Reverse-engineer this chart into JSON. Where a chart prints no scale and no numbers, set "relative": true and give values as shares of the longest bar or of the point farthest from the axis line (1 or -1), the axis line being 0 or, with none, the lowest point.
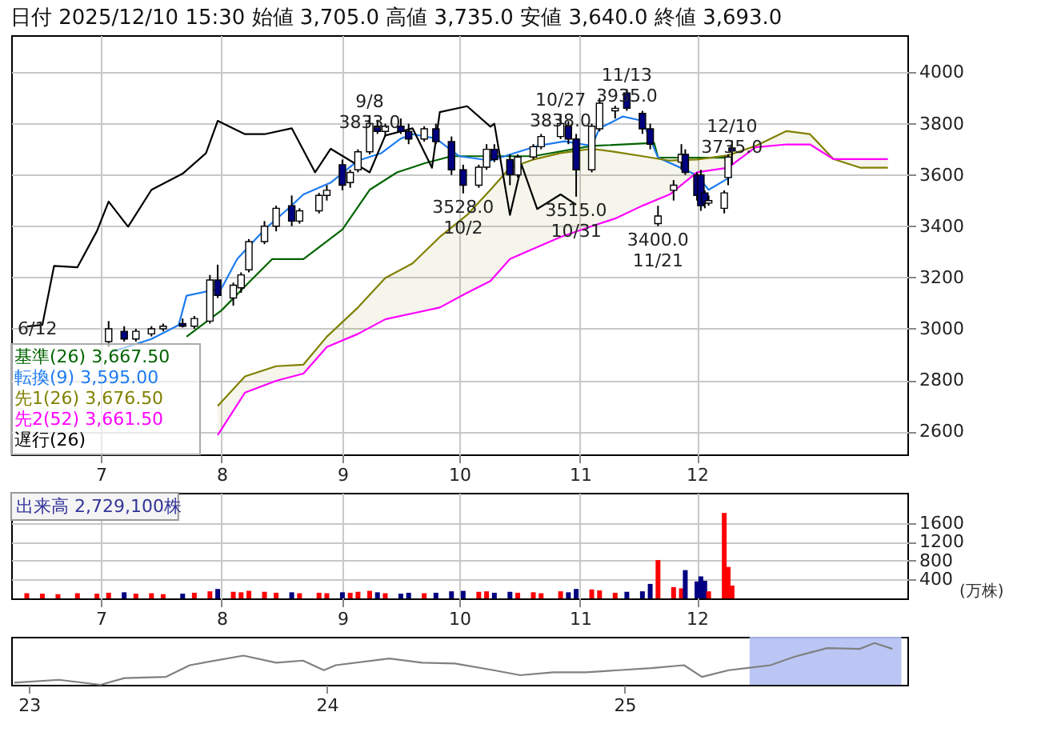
{
  "chart_data": [
    {
      "type": "candlestick",
      "title": "日付 2025/12/10 15:30 始値 3,705.0 高値 3,735.0 安値 3,640.0 終値 3,693.0",
      "x": [
        "2025-07-03",
        "2025-07-07",
        "2025-07-10",
        "2025-07-14",
        "2025-07-17",
        "2025-07-22",
        "2025-07-25",
        "2025-07-29",
        "2025-07-31",
        "2025-08-04",
        "2025-08-06",
        "2025-08-08",
        "2025-08-12",
        "2025-08-15",
        "2025-08-19",
        "2025-08-21",
        "2025-08-26",
        "2025-08-28",
        "2025-09-01",
        "2025-09-03",
        "2025-09-05",
        "2025-09-08",
        "2025-09-10",
        "2025-09-12",
        "2025-09-16",
        "2025-09-18",
        "2025-09-22",
        "2025-09-25",
        "2025-09-29",
        "2025-10-02",
        "2025-10-06",
        "2025-10-08",
        "2025-10-10",
        "2025-10-14",
        "2025-10-16",
        "2025-10-20",
        "2025-10-22",
        "2025-10-27",
        "2025-10-29",
        "2025-10-31",
        "2025-11-04",
        "2025-11-06",
        "2025-11-10",
        "2025-11-13",
        "2025-11-17",
        "2025-11-19",
        "2025-11-21",
        "2025-11-25",
        "2025-11-27",
        "2025-11-28",
        "2025-12-01",
        "2025-12-02",
        "2025-12-03",
        "2025-12-04",
        "2025-12-08",
        "2025-12-09",
        "2025-12-10"
      ],
      "ohlc": [
        [
          2950,
          3030,
          2930,
          3000
        ],
        [
          2990,
          3010,
          2950,
          2960
        ],
        [
          2960,
          3000,
          2950,
          2990
        ],
        [
          2980,
          3010,
          2970,
          3000
        ],
        [
          3000,
          3020,
          2990,
          3010
        ],
        [
          3020,
          3040,
          3005,
          3010
        ],
        [
          3010,
          3050,
          3000,
          3040
        ],
        [
          3030,
          3210,
          3020,
          3190
        ],
        [
          3190,
          3250,
          3120,
          3130
        ],
        [
          3120,
          3180,
          3090,
          3170
        ],
        [
          3160,
          3220,
          3140,
          3210
        ],
        [
          3230,
          3350,
          3220,
          3340
        ],
        [
          3340,
          3420,
          3330,
          3400
        ],
        [
          3400,
          3480,
          3380,
          3470
        ],
        [
          3480,
          3520,
          3400,
          3420
        ],
        [
          3420,
          3470,
          3410,
          3460
        ],
        [
          3460,
          3530,
          3450,
          3520
        ],
        [
          3520,
          3560,
          3500,
          3540
        ],
        [
          3640,
          3660,
          3540,
          3560
        ],
        [
          3570,
          3620,
          3550,
          3610
        ],
        [
          3620,
          3700,
          3610,
          3690
        ],
        [
          3690,
          3833,
          3680,
          3800
        ],
        [
          3790,
          3815,
          3760,
          3770
        ],
        [
          3770,
          3800,
          3750,
          3790
        ],
        [
          3790,
          3820,
          3760,
          3770
        ],
        [
          3770,
          3800,
          3720,
          3740
        ],
        [
          3740,
          3790,
          3730,
          3780
        ],
        [
          3780,
          3800,
          3720,
          3730
        ],
        [
          3730,
          3750,
          3600,
          3620
        ],
        [
          3620,
          3640,
          3528,
          3560
        ],
        [
          3560,
          3640,
          3550,
          3630
        ],
        [
          3630,
          3720,
          3620,
          3700
        ],
        [
          3700,
          3720,
          3650,
          3660
        ],
        [
          3660,
          3680,
          3560,
          3600
        ],
        [
          3600,
          3680,
          3590,
          3670
        ],
        [
          3670,
          3720,
          3660,
          3710
        ],
        [
          3710,
          3760,
          3700,
          3750
        ],
        [
          3750,
          3838,
          3740,
          3800
        ],
        [
          3790,
          3810,
          3720,
          3740
        ],
        [
          3740,
          3760,
          3515,
          3620
        ],
        [
          3620,
          3800,
          3610,
          3790
        ],
        [
          3780,
          3900,
          3770,
          3880
        ],
        [
          3850,
          3870,
          3820,
          3860
        ],
        [
          3920,
          3935,
          3850,
          3860
        ],
        [
          3840,
          3850,
          3760,
          3780
        ],
        [
          3780,
          3800,
          3700,
          3720
        ],
        [
          3410,
          3480,
          3400,
          3440
        ],
        [
          3540,
          3580,
          3500,
          3560
        ],
        [
          3650,
          3720,
          3620,
          3680
        ],
        [
          3680,
          3700,
          3600,
          3610
        ],
        [
          3600,
          3610,
          3500,
          3520
        ],
        [
          3600,
          3620,
          3460,
          3480
        ],
        [
          3530,
          3540,
          3470,
          3490
        ],
        [
          3490,
          3520,
          3480,
          3500
        ],
        [
          3470,
          3540,
          3450,
          3530
        ],
        [
          3590,
          3680,
          3560,
          3670
        ],
        [
          3705,
          3735,
          3640,
          3693
        ]
      ],
      "colors": [
        "#ffffff",
        "#000080",
        "#ffffff",
        "#ffffff",
        "#ffffff",
        "#000080",
        "#ffffff",
        "#ffffff",
        "#000080",
        "#ffffff",
        "#ffffff",
        "#ffffff",
        "#ffffff",
        "#ffffff",
        "#000080",
        "#ffffff",
        "#ffffff",
        "#ffffff",
        "#000080",
        "#ffffff",
        "#ffffff",
        "#ffffff",
        "#000080",
        "#ffffff",
        "#000080",
        "#000080",
        "#ffffff",
        "#000080",
        "#000080",
        "#000080",
        "#ffffff",
        "#ffffff",
        "#000080",
        "#000080",
        "#ffffff",
        "#ffffff",
        "#ffffff",
        "#ffffff",
        "#000080",
        "#000080",
        "#ffffff",
        "#ffffff",
        "#ffffff",
        "#000080",
        "#000080",
        "#000080",
        "#ffffff",
        "#ffffff",
        "#ffffff",
        "#000080",
        "#000080",
        "#000080",
        "#000080",
        "#ffffff",
        "#ffffff",
        "#ffffff",
        "#000080"
      ],
      "series": [
        {
          "name": "基準(26) 3,667.50",
          "type": "line",
          "color": "#006400",
          "x": [
            "2025-07-23",
            "2025-08-01",
            "2025-08-08",
            "2025-08-14",
            "2025-08-22",
            "2025-09-01",
            "2025-09-08",
            "2025-09-15",
            "2025-09-22",
            "2025-09-29",
            "2025-10-20",
            "2025-11-04",
            "2025-11-20",
            "2025-11-21",
            "2025-12-10"
          ],
          "values": [
            2969,
            3072,
            3181,
            3272,
            3272,
            3387,
            3542,
            3610,
            3645,
            3673,
            3673,
            3713,
            3725,
            3668,
            3667.5
          ]
        },
        {
          "name": "転換(9) 3,595.00",
          "type": "line",
          "color": "#1e7cf0",
          "x": [
            "2025-07-04",
            "2025-07-14",
            "2025-07-21",
            "2025-07-23",
            "2025-08-01",
            "2025-08-05",
            "2025-08-12",
            "2025-08-18",
            "2025-08-22",
            "2025-08-29",
            "2025-09-05",
            "2025-09-11",
            "2025-09-16",
            "2025-09-19",
            "2025-09-25",
            "2025-10-01",
            "2025-10-09",
            "2025-10-21",
            "2025-10-28",
            "2025-11-04",
            "2025-11-06",
            "2025-11-12",
            "2025-11-17",
            "2025-11-21",
            "2025-12-01",
            "2025-12-04",
            "2025-12-09",
            "2025-12-10"
          ],
          "values": [
            2911,
            2960,
            3015,
            3129,
            3158,
            3272,
            3387,
            3467,
            3524,
            3570,
            3656,
            3685,
            3742,
            3759,
            3742,
            3673,
            3656,
            3713,
            3731,
            3713,
            3782,
            3828,
            3811,
            3668,
            3599,
            3542,
            3587,
            3595
          ]
        },
        {
          "name": "先1(26) 3,676.50",
          "type": "line",
          "color": "#808000",
          "x": [
            "2025-07-31",
            "2025-08-07",
            "2025-08-15",
            "2025-08-22",
            "2025-08-28",
            "2025-09-05",
            "2025-09-12",
            "2025-09-19",
            "2025-09-26",
            "2025-10-03",
            "2025-10-09",
            "2025-10-14",
            "2025-10-20",
            "2025-10-27",
            "2025-11-04",
            "2025-11-10",
            "2025-11-17",
            "2025-11-24",
            "2025-12-01",
            "2025-12-09",
            "2025-12-16",
            "2025-12-24",
            "2025-12-30",
            "2026-01-05",
            "2026-01-12",
            "2026-01-19"
          ],
          "values": [
            2699,
            2814,
            2854,
            2860,
            2969,
            3083,
            3198,
            3255,
            3358,
            3444,
            3542,
            3628,
            3660,
            3685,
            3702,
            3690,
            3673,
            3656,
            3660,
            3676.5,
            3713,
            3771,
            3759,
            3662,
            3628,
            3628
          ],
          "upper": [
            2699,
            2814,
            2854,
            2860,
            2969,
            3083,
            3198,
            3255,
            3358,
            3444,
            3542,
            3628,
            3660,
            3685,
            3702,
            3690,
            3673,
            3656,
            3660,
            3676.5,
            3713,
            3771,
            3759,
            3662,
            3628,
            3628
          ],
          "lower": [
            2585,
            2751,
            2797,
            2825,
            2929,
            2980,
            3037,
            3060,
            3083,
            3140,
            3186,
            3272,
            3312,
            3358,
            3400,
            3430,
            3480,
            3524,
            3610,
            3628,
            3708,
            3719,
            3719,
            3662,
            3662,
            3662
          ]
        },
        {
          "name": "先2(52) 3,661.50",
          "type": "line",
          "color": "#ff00ff",
          "x": [
            "2025-07-31",
            "2025-08-07",
            "2025-08-15",
            "2025-08-22",
            "2025-08-28",
            "2025-09-05",
            "2025-09-12",
            "2025-09-19",
            "2025-09-26",
            "2025-10-03",
            "2025-10-09",
            "2025-10-14",
            "2025-10-20",
            "2025-10-27",
            "2025-11-04",
            "2025-11-10",
            "2025-11-17",
            "2025-11-24",
            "2025-12-01",
            "2025-12-09",
            "2025-12-16",
            "2025-12-24",
            "2025-12-30",
            "2026-01-05",
            "2026-01-12",
            "2026-01-19"
          ],
          "values": [
            2585,
            2751,
            2797,
            2825,
            2929,
            2980,
            3037,
            3060,
            3083,
            3140,
            3186,
            3272,
            3312,
            3358,
            3400,
            3430,
            3480,
            3524,
            3610,
            3628,
            3708,
            3719,
            3719,
            3662,
            3662,
            3662
          ]
        },
        {
          "name": "遅行(26)",
          "type": "line",
          "color": "#000000",
          "x": [
            "2025-06-12",
            "2025-06-16",
            "2025-06-19",
            "2025-06-25",
            "2025-06-30",
            "2025-07-03",
            "2025-07-08",
            "2025-07-14",
            "2025-07-22",
            "2025-07-28",
            "2025-07-31",
            "2025-08-07",
            "2025-08-12",
            "2025-08-19",
            "2025-08-25",
            "2025-08-29",
            "2025-09-08",
            "2025-09-12",
            "2025-09-19",
            "2025-09-24",
            "2025-09-26",
            "2025-10-03",
            "2025-10-09",
            "2025-10-10",
            "2025-10-14",
            "2025-10-17",
            "2025-10-21",
            "2025-10-27",
            "2025-10-31"
          ],
          "values": [
            3009,
            3015,
            3245,
            3240,
            3381,
            3496,
            3398,
            3542,
            3605,
            3685,
            3811,
            3759,
            3759,
            3782,
            3610,
            3702,
            3610,
            3754,
            3782,
            3628,
            3845,
            3868,
            3788,
            3800,
            3444,
            3639,
            3467,
            3524,
            3484
          ]
        }
      ],
      "annotations": [
        "6/12",
        {
          "text": "9/8\n3833.0",
          "x": "2025-09-08",
          "y": 3833
        },
        {
          "text": "3528.0\n10/2",
          "x": "2025-10-02",
          "y": 3528
        },
        {
          "text": "10/27\n3838.0",
          "x": "2025-10-27",
          "y": 3838
        },
        {
          "text": "3515.0\n10/31",
          "x": "2025-10-31",
          "y": 3515
        },
        {
          "text": "11/13\n3935.0",
          "x": "2025-11-13",
          "y": 3935
        },
        {
          "text": "3400.0\n11/21",
          "x": "2025-11-21",
          "y": 3400
        },
        {
          "text": "12/10\n3735.0",
          "x": "2025-12-10",
          "y": 3735
        }
      ],
      "xlim": [
        "2025-06-08",
        "2026-01-24"
      ],
      "xticks": [
        {
          "value": "2025-07-01",
          "label": "7"
        },
        {
          "value": "2025-08-01",
          "label": "8"
        },
        {
          "value": "2025-09-01",
          "label": "9"
        },
        {
          "value": "2025-10-01",
          "label": "10"
        },
        {
          "value": "2025-11-01",
          "label": "11"
        },
        {
          "value": "2025-12-01",
          "label": "12"
        }
      ],
      "ylim": [
        2510,
        4145
      ],
      "yticks": [
        2600,
        2800,
        3000,
        3200,
        3400,
        3600,
        3800,
        4000
      ],
      "grid": true,
      "legend": "bottom left"
    },
    {
      "type": "bar",
      "x": [
        "2025-06-12",
        "2025-06-16",
        "2025-06-20",
        "2025-06-25",
        "2025-06-30",
        "2025-07-03",
        "2025-07-07",
        "2025-07-10",
        "2025-07-14",
        "2025-07-17",
        "2025-07-22",
        "2025-07-25",
        "2025-07-29",
        "2025-07-31",
        "2025-08-04",
        "2025-08-06",
        "2025-08-08",
        "2025-08-12",
        "2025-08-15",
        "2025-08-19",
        "2025-08-21",
        "2025-08-26",
        "2025-08-28",
        "2025-09-01",
        "2025-09-03",
        "2025-09-05",
        "2025-09-08",
        "2025-09-10",
        "2025-09-12",
        "2025-09-16",
        "2025-09-18",
        "2025-09-22",
        "2025-09-25",
        "2025-09-29",
        "2025-10-02",
        "2025-10-06",
        "2025-10-08",
        "2025-10-10",
        "2025-10-14",
        "2025-10-16",
        "2025-10-20",
        "2025-10-22",
        "2025-10-27",
        "2025-10-29",
        "2025-10-31",
        "2025-11-04",
        "2025-11-06",
        "2025-11-10",
        "2025-11-13",
        "2025-11-17",
        "2025-11-19",
        "2025-11-21",
        "2025-11-25",
        "2025-11-27",
        "2025-11-28",
        "2025-12-01",
        "2025-12-02",
        "2025-12-03",
        "2025-12-04",
        "2025-12-08",
        "2025-12-09",
        "2025-12-10"
      ],
      "values": [
        110,
        100,
        90,
        110,
        100,
        120,
        130,
        100,
        110,
        90,
        100,
        120,
        150,
        200,
        140,
        130,
        160,
        140,
        120,
        130,
        110,
        120,
        110,
        130,
        120,
        140,
        160,
        130,
        110,
        100,
        120,
        110,
        120,
        150,
        160,
        140,
        150,
        120,
        140,
        120,
        130,
        110,
        150,
        130,
        200,
        190,
        170,
        120,
        140,
        150,
        307,
        813,
        240,
        213,
        600,
        360,
        467,
        373,
        150,
        1813,
        667,
        272.91
      ],
      "colors": [
        "#ff0000",
        "#ff0000",
        "#ff0000",
        "#ff0000",
        "#ff0000",
        "#ff0000",
        "#000080",
        "#ff0000",
        "#ff0000",
        "#ff0000",
        "#000080",
        "#ff0000",
        "#ff0000",
        "#000080",
        "#ff0000",
        "#ff0000",
        "#ff0000",
        "#ff0000",
        "#ff0000",
        "#000080",
        "#ff0000",
        "#ff0000",
        "#ff0000",
        "#000080",
        "#ff0000",
        "#ff0000",
        "#ff0000",
        "#000080",
        "#ff0000",
        "#000080",
        "#000080",
        "#ff0000",
        "#000080",
        "#000080",
        "#000080",
        "#ff0000",
        "#ff0000",
        "#000080",
        "#000080",
        "#ff0000",
        "#ff0000",
        "#ff0000",
        "#ff0000",
        "#000080",
        "#000080",
        "#ff0000",
        "#ff0000",
        "#ff0000",
        "#000080",
        "#000080",
        "#000080",
        "#ff0000",
        "#ff0000",
        "#ff0000",
        "#000080",
        "#000080",
        "#000080",
        "#000080",
        "#ff0000",
        "#ff0000",
        "#ff0000",
        "#ff0000"
      ],
      "annotations": [
        "出来高 2,729,100株"
      ],
      "ylabel": "(万株)",
      "xlim": [
        "2025-06-08",
        "2026-01-24"
      ],
      "xticks": [
        {
          "value": "2025-07-01",
          "label": "7"
        },
        {
          "value": "2025-08-01",
          "label": "8"
        },
        {
          "value": "2025-09-01",
          "label": "9"
        },
        {
          "value": "2025-10-01",
          "label": "10"
        },
        {
          "value": "2025-11-01",
          "label": "11"
        },
        {
          "value": "2025-12-01",
          "label": "12"
        }
      ],
      "ylim": [
        0,
        2240
      ],
      "yticks": [
        400,
        800,
        1200,
        1600
      ],
      "grid": true
    },
    {
      "type": "line",
      "relative": true,
      "x": [
        2022.95,
        2023.1,
        2023.24,
        2023.32,
        2023.46,
        2023.54,
        2023.72,
        2023.83,
        2023.92,
        2023.99,
        2024.03,
        2024.21,
        2024.32,
        2024.43,
        2024.56,
        2024.65,
        2024.76,
        2024.87,
        2024.98,
        2025.09,
        2025.2,
        2025.26,
        2025.35,
        2025.41,
        2025.49,
        2025.57,
        2025.68,
        2025.79,
        2025.84,
        2025.9
      ],
      "series": [
        {
          "color": "#808080",
          "values": [
            0.05,
            0.12,
            0,
            0.16,
            0.19,
            0.47,
            0.7,
            0.53,
            0.58,
            0.35,
            0.47,
            0.63,
            0.53,
            0.51,
            0.35,
            0.23,
            0.3,
            0.3,
            0.35,
            0.4,
            0.47,
            0.19,
            0.35,
            0.4,
            0.47,
            0.67,
            0.88,
            0.86,
            1,
            0.86
          ]
        }
      ],
      "bands": [
        {
          "axis": "x",
          "from": 2025.42,
          "to": 2025.93,
          "color": "#b4c0f4"
        }
      ],
      "xlim": [
        2022.94,
        2025.95
      ],
      "xticks": [
        {
          "value": 2023,
          "label": "23"
        },
        {
          "value": 2024,
          "label": "24"
        },
        {
          "value": 2025,
          "label": "25"
        }
      ]
    }
  ]
}
